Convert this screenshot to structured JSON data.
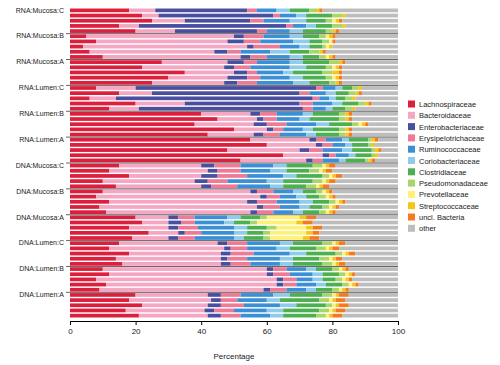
{
  "chart_data": {
    "type": "bar",
    "orientation": "horizontal",
    "stacked": true,
    "legend": "right",
    "xlabel": "Percentage",
    "xlim": [
      0,
      100
    ],
    "xticks": [
      0,
      20,
      40,
      60,
      80,
      100
    ],
    "categories": [
      "RNA:Mucosa:C",
      null,
      null,
      null,
      null,
      "RNA:Mucosa:B",
      null,
      null,
      null,
      null,
      "RNA:Mucosa:A",
      null,
      null,
      null,
      null,
      "RNA:Lumen:C",
      null,
      null,
      null,
      null,
      "RNA:Lumen:B",
      null,
      null,
      null,
      null,
      "RNA:Lumen:A",
      null,
      null,
      null,
      null,
      "DNA:Mucosa:C",
      null,
      null,
      null,
      null,
      "DNA:Mucosa:B",
      null,
      null,
      null,
      null,
      "DNA:Mucosa:A",
      null,
      null,
      null,
      null,
      "DNA:Lumen:C",
      null,
      null,
      null,
      null,
      "DNA:Lumen:B",
      null,
      null,
      null,
      null,
      "DNA:Lumen:A",
      null,
      null,
      null,
      null
    ],
    "series": [
      {
        "name": "Lachnospiraceae",
        "color": "#dc1f3c",
        "values": [
          18,
          22,
          25,
          15,
          20,
          5,
          8,
          4,
          6,
          10,
          28,
          22,
          35,
          30,
          25,
          8,
          15,
          6,
          20,
          12,
          40,
          45,
          38,
          50,
          42,
          55,
          60,
          48,
          65,
          52,
          15,
          12,
          18,
          10,
          14,
          10,
          8,
          12,
          9,
          11,
          20,
          22,
          18,
          24,
          19,
          15,
          12,
          18,
          14,
          16,
          10,
          12,
          8,
          11,
          9,
          20,
          18,
          22,
          17,
          21
        ]
      },
      {
        "name": "Bacteroidaceae",
        "color": "#f4a6c2",
        "values": [
          8,
          5,
          10,
          6,
          12,
          45,
          40,
          50,
          38,
          42,
          20,
          25,
          15,
          18,
          22,
          12,
          10,
          8,
          15,
          9,
          15,
          12,
          18,
          10,
          14,
          18,
          15,
          22,
          12,
          20,
          25,
          30,
          22,
          28,
          26,
          45,
          50,
          42,
          48,
          44,
          10,
          8,
          12,
          9,
          11,
          30,
          35,
          28,
          32,
          30,
          50,
          48,
          55,
          52,
          50,
          22,
          25,
          20,
          24,
          21
        ]
      },
      {
        "name": "Enterobacteriaceae",
        "color": "#4a4e9e",
        "values": [
          28,
          35,
          20,
          45,
          25,
          3,
          5,
          2,
          4,
          3,
          5,
          3,
          4,
          6,
          4,
          55,
          45,
          60,
          35,
          50,
          3,
          2,
          4,
          2,
          3,
          2,
          2,
          3,
          2,
          2,
          4,
          3,
          5,
          4,
          3,
          2,
          2,
          3,
          2,
          2,
          3,
          4,
          3,
          2,
          3,
          3,
          2,
          3,
          2,
          3,
          2,
          2,
          2,
          2,
          2,
          4,
          3,
          4,
          3,
          4
        ]
      },
      {
        "name": "Erysipelotrichaceae",
        "color": "#ee7a96",
        "values": [
          3,
          2,
          4,
          2,
          3,
          6,
          5,
          8,
          4,
          5,
          4,
          5,
          3,
          4,
          6,
          2,
          3,
          2,
          4,
          3,
          5,
          4,
          6,
          3,
          5,
          3,
          3,
          4,
          2,
          3,
          8,
          7,
          9,
          6,
          8,
          5,
          4,
          6,
          5,
          5,
          5,
          4,
          6,
          5,
          5,
          6,
          5,
          7,
          6,
          6,
          4,
          5,
          4,
          4,
          5,
          6,
          5,
          7,
          6,
          6
        ]
      },
      {
        "name": "Ruminococcaceae",
        "color": "#3b8fd4",
        "values": [
          6,
          5,
          8,
          4,
          7,
          8,
          10,
          6,
          9,
          7,
          10,
          12,
          8,
          9,
          11,
          4,
          5,
          3,
          6,
          4,
          8,
          7,
          9,
          6,
          8,
          5,
          4,
          6,
          4,
          5,
          10,
          9,
          11,
          12,
          10,
          6,
          5,
          7,
          6,
          6,
          10,
          9,
          11,
          10,
          12,
          10,
          9,
          11,
          10,
          9,
          6,
          7,
          5,
          6,
          6,
          10,
          9,
          11,
          10,
          9
        ]
      },
      {
        "name": "Coriobacteriaceae",
        "color": "#8fcbea",
        "values": [
          4,
          3,
          5,
          3,
          4,
          4,
          5,
          3,
          6,
          4,
          4,
          5,
          3,
          4,
          5,
          2,
          3,
          2,
          3,
          2,
          3,
          3,
          4,
          3,
          3,
          2,
          2,
          3,
          2,
          2,
          4,
          5,
          4,
          5,
          4,
          3,
          3,
          4,
          3,
          3,
          4,
          3,
          4,
          4,
          3,
          4,
          4,
          5,
          4,
          4,
          3,
          3,
          3,
          3,
          3,
          5,
          4,
          5,
          5,
          4
        ]
      },
      {
        "name": "Clostridiaceae",
        "color": "#4caf50",
        "values": [
          6,
          8,
          6,
          5,
          7,
          5,
          4,
          4,
          6,
          5,
          8,
          6,
          9,
          7,
          6,
          3,
          4,
          3,
          5,
          4,
          8,
          9,
          7,
          8,
          7,
          6,
          5,
          6,
          5,
          6,
          8,
          7,
          8,
          9,
          7,
          4,
          4,
          5,
          4,
          5,
          6,
          5,
          6,
          5,
          6,
          9,
          8,
          9,
          8,
          9,
          5,
          5,
          4,
          5,
          5,
          10,
          12,
          9,
          11,
          10
        ]
      },
      {
        "name": "Pseudomonadaceae",
        "color": "#a8d66b",
        "values": [
          2,
          3,
          2,
          3,
          2,
          2,
          2,
          1,
          3,
          2,
          3,
          2,
          3,
          2,
          2,
          2,
          2,
          2,
          2,
          2,
          2,
          2,
          2,
          2,
          2,
          1,
          1,
          1,
          1,
          1,
          3,
          3,
          2,
          3,
          3,
          2,
          2,
          2,
          2,
          2,
          2,
          2,
          3,
          2,
          2,
          3,
          3,
          2,
          3,
          3,
          2,
          2,
          2,
          2,
          2,
          3,
          3,
          2,
          3,
          3
        ]
      },
      {
        "name": "Prevotellaceae",
        "color": "#fff176",
        "values": [
          0,
          0,
          1,
          0,
          0,
          1,
          1,
          1,
          0,
          1,
          0,
          1,
          0,
          1,
          0,
          0,
          0,
          0,
          0,
          0,
          0,
          0,
          1,
          0,
          0,
          0,
          0,
          0,
          0,
          0,
          1,
          1,
          1,
          1,
          1,
          1,
          1,
          1,
          1,
          1,
          10,
          12,
          9,
          11,
          10,
          1,
          1,
          1,
          1,
          1,
          1,
          1,
          1,
          1,
          1,
          1,
          1,
          1,
          1,
          1
        ]
      },
      {
        "name": "Streptococcaceae",
        "color": "#f5c518",
        "values": [
          1,
          1,
          1,
          1,
          1,
          1,
          0,
          1,
          1,
          1,
          1,
          1,
          2,
          1,
          1,
          1,
          1,
          1,
          1,
          1,
          1,
          1,
          1,
          1,
          1,
          1,
          1,
          1,
          1,
          1,
          1,
          1,
          1,
          1,
          1,
          1,
          1,
          1,
          1,
          1,
          2,
          2,
          2,
          2,
          2,
          1,
          1,
          1,
          1,
          1,
          1,
          1,
          1,
          1,
          1,
          1,
          1,
          1,
          1,
          1
        ]
      },
      {
        "name": "uncl. Bacteria",
        "color": "#f47a20",
        "values": [
          1,
          0,
          1,
          0,
          1,
          1,
          1,
          0,
          1,
          1,
          1,
          1,
          1,
          1,
          1,
          0,
          1,
          0,
          1,
          0,
          1,
          1,
          1,
          1,
          1,
          1,
          0,
          1,
          0,
          1,
          2,
          2,
          2,
          2,
          2,
          1,
          1,
          1,
          1,
          1,
          3,
          3,
          3,
          2,
          3,
          2,
          2,
          2,
          2,
          2,
          1,
          1,
          1,
          1,
          1,
          3,
          3,
          3,
          3,
          3
        ]
      },
      {
        "name": "other",
        "color": "#bdbdbd",
        "values": [
          23,
          16,
          17,
          16,
          18,
          19,
          19,
          20,
          22,
          19,
          16,
          17,
          17,
          17,
          17,
          11,
          11,
          13,
          8,
          13,
          14,
          14,
          9,
          14,
          14,
          6,
          7,
          5,
          6,
          7,
          19,
          20,
          17,
          19,
          21,
          20,
          19,
          16,
          18,
          19,
          25,
          26,
          23,
          24,
          24,
          16,
          18,
          13,
          17,
          16,
          15,
          13,
          14,
          12,
          15,
          15,
          16,
          15,
          16,
          17
        ]
      }
    ]
  }
}
